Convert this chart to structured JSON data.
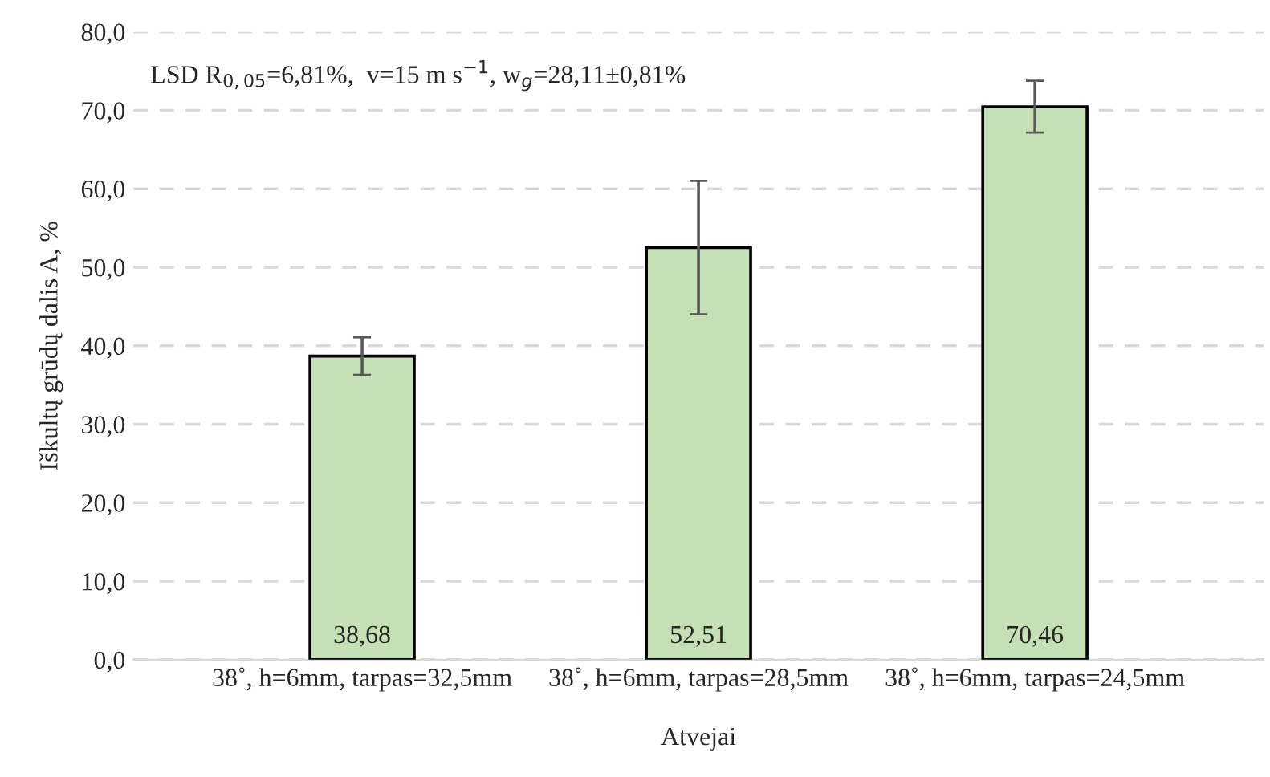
{
  "chart_data": {
    "type": "bar",
    "categories": [
      "38˚, h=6mm, tarpas=32,5mm",
      "38˚, h=6mm, tarpas=28,5mm",
      "38˚, h=6mm, tarpas=24,5mm"
    ],
    "values": [
      38.68,
      52.51,
      70.46
    ],
    "errors": [
      2.4,
      8.5,
      3.3
    ],
    "value_labels": [
      "38,68",
      "52,51",
      "70,46"
    ],
    "color": "#c5e0b4",
    "xlabel": "Atvejai",
    "ylabel": "Iškultų grūdų dalis A, %",
    "annotations": [
      "LSD R$_{0,05}$=6,81%,  v=15 m s$^{−1}$, w$_{g}$=28,11±0,81%"
    ],
    "ylim": [
      0,
      80
    ],
    "yticks": [
      {
        "value": 0,
        "label": "0,0"
      },
      {
        "value": 10,
        "label": "10,0"
      },
      {
        "value": 20,
        "label": "20,0"
      },
      {
        "value": 30,
        "label": "30,0"
      },
      {
        "value": 40,
        "label": "40,0"
      },
      {
        "value": 50,
        "label": "50,0"
      },
      {
        "value": 60,
        "label": "60,0"
      },
      {
        "value": 70,
        "label": "70,0"
      },
      {
        "value": 80,
        "label": "80,0"
      }
    ],
    "grid": "y",
    "legend": false
  }
}
